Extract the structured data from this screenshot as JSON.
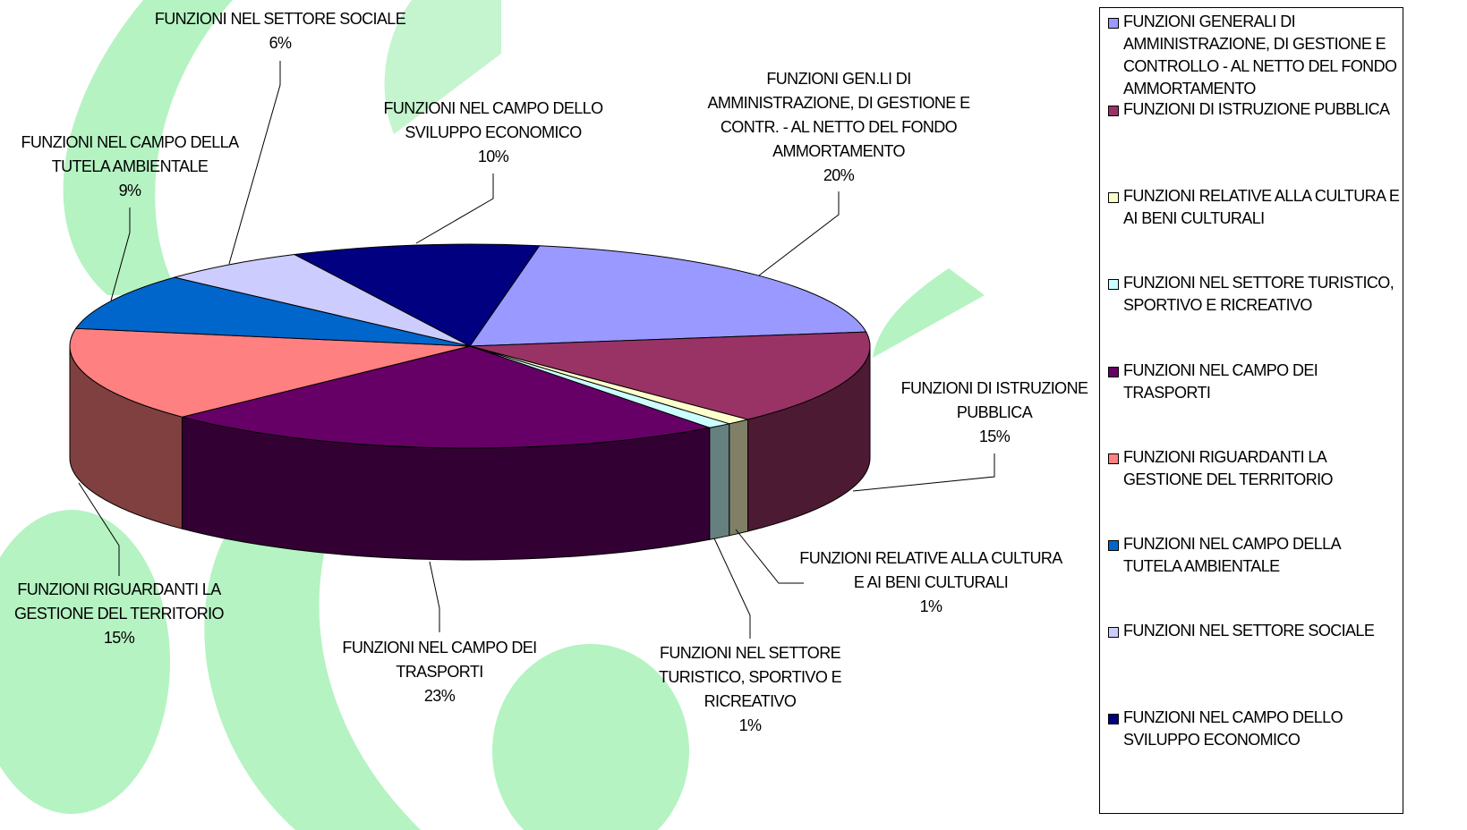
{
  "chart_data": {
    "type": "pie3d",
    "categories": [
      "FUNZIONI GENERALI DI AMMINISTRAZIONE, DI GESTIONE E CONTROLLO - AL NETTO DEL FONDO AMMORTAMENTO",
      "FUNZIONI DI ISTRUZIONE PUBBLICA",
      "FUNZIONI RELATIVE ALLA CULTURA E AI BENI CULTURALI",
      "FUNZIONI NEL SETTORE TURISTICO, SPORTIVO E RICREATIVO",
      "FUNZIONI NEL CAMPO DEI TRASPORTI",
      "FUNZIONI RIGUARDANTI LA GESTIONE DEL TERRITORIO",
      "FUNZIONI NEL CAMPO DELLA TUTELA AMBIENTALE",
      "FUNZIONI NEL SETTORE SOCIALE",
      "FUNZIONI NEL CAMPO DELLO SVILUPPO ECONOMICO"
    ],
    "slice_labels": [
      "FUNZIONI GEN.LI DI AMMINISTRAZIONE, DI GESTIONE E CONTR. - AL NETTO DEL FONDO AMMORTAMENTO",
      "FUNZIONI DI ISTRUZIONE PUBBLICA",
      "FUNZIONI RELATIVE ALLA CULTURA E AI BENI CULTURALI",
      "FUNZIONI NEL SETTORE TURISTICO, SPORTIVO E RICREATIVO",
      "FUNZIONI NEL CAMPO DEI TRASPORTI",
      "FUNZIONI RIGUARDANTI LA GESTIONE DEL TERRITORIO",
      "FUNZIONI NEL CAMPO DELLA TUTELA AMBIENTALE",
      "FUNZIONI NEL SETTORE SOCIALE",
      "FUNZIONI NEL CAMPO DELLO SVILUPPO ECONOMICO"
    ],
    "values": [
      20,
      15,
      1,
      1,
      23,
      15,
      9,
      6,
      10
    ],
    "value_labels": [
      "20%",
      "15%",
      "1%",
      "1%",
      "23%",
      "15%",
      "9%",
      "6%",
      "10%"
    ],
    "colors": [
      "#9999ff",
      "#993366",
      "#ffffcc",
      "#ccffff",
      "#660066",
      "#ff8080",
      "#0066cc",
      "#ccccff",
      "#000080"
    ],
    "legend": "right"
  }
}
